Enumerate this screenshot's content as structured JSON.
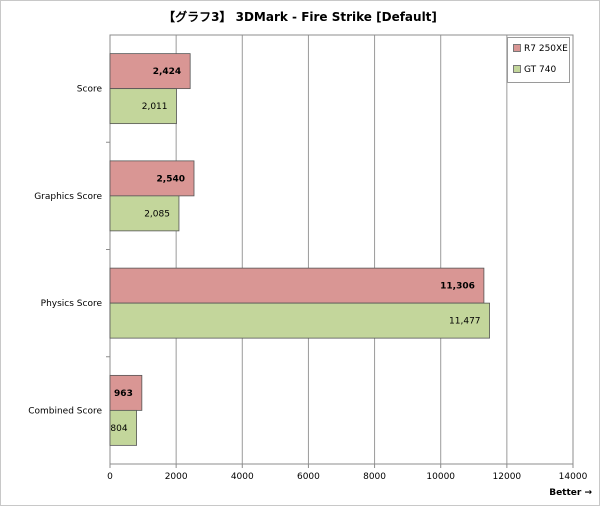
{
  "chart_data": {
    "type": "bar",
    "orientation": "horizontal",
    "title": "【グラフ3】 3DMark - Fire Strike [Default]",
    "categories": [
      "Score",
      "Graphics Score",
      "Physics Score",
      "Combined Score"
    ],
    "series": [
      {
        "name": "R7 250XE",
        "color": "#d99694",
        "values": [
          2424,
          2540,
          11306,
          963
        ],
        "labels": [
          "2,424",
          "2,540",
          "11,306",
          "963"
        ],
        "bold_labels": true
      },
      {
        "name": "GT 740",
        "color": "#c3d69b",
        "values": [
          2011,
          2085,
          11477,
          804
        ],
        "labels": [
          "2,011",
          "2,085",
          "11,477",
          "804"
        ],
        "bold_labels": false
      }
    ],
    "xlim": [
      0,
      14000
    ],
    "xticks": [
      "0",
      "2000",
      "4000",
      "6000",
      "8000",
      "10000",
      "12000",
      "14000"
    ],
    "xtick_values": [
      0,
      2000,
      4000,
      6000,
      8000,
      10000,
      12000,
      14000
    ],
    "grid": true,
    "legend_position": "top-right",
    "footnote": "Better →"
  }
}
